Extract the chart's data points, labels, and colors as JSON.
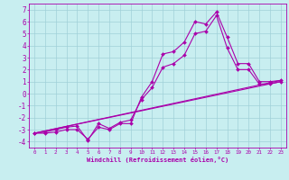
{
  "xlabel": "Windchill (Refroidissement éolien,°C)",
  "xlim": [
    -0.5,
    23.5
  ],
  "ylim": [
    -4.5,
    7.5
  ],
  "xticks": [
    0,
    1,
    2,
    3,
    4,
    5,
    6,
    7,
    8,
    9,
    10,
    11,
    12,
    13,
    14,
    15,
    16,
    17,
    18,
    19,
    20,
    21,
    22,
    23
  ],
  "yticks": [
    -4,
    -3,
    -2,
    -1,
    0,
    1,
    2,
    3,
    4,
    5,
    6,
    7
  ],
  "bg_color": "#c8eef0",
  "line_color": "#aa00aa",
  "grid_color": "#a0d0d8",
  "line1_x": [
    0,
    1,
    2,
    3,
    4,
    5,
    6,
    7,
    8,
    9,
    10,
    11,
    12,
    13,
    14,
    15,
    16,
    17,
    18,
    19,
    20,
    21,
    22,
    23
  ],
  "line1_y": [
    -3.3,
    -3.3,
    -3.2,
    -3.0,
    -3.0,
    -3.8,
    -2.8,
    -3.0,
    -2.5,
    -2.5,
    -0.3,
    1.0,
    3.3,
    3.5,
    4.3,
    6.0,
    5.8,
    6.8,
    4.7,
    2.5,
    2.5,
    1.0,
    1.0,
    1.1
  ],
  "line2_x": [
    0,
    1,
    2,
    3,
    4,
    5,
    6,
    7,
    8,
    9,
    10,
    11,
    12,
    13,
    14,
    15,
    16,
    17,
    18,
    19,
    20,
    21,
    22,
    23
  ],
  "line2_y": [
    -3.3,
    -3.2,
    -3.0,
    -2.8,
    -2.7,
    -3.9,
    -2.5,
    -2.9,
    -2.4,
    -2.2,
    -0.5,
    0.5,
    2.2,
    2.5,
    3.2,
    5.0,
    5.2,
    6.5,
    3.8,
    2.0,
    2.0,
    0.8,
    0.8,
    1.0
  ],
  "line3_x": [
    0,
    23
  ],
  "line3_y": [
    -3.3,
    1.1
  ],
  "line4_x": [
    0,
    23
  ],
  "line4_y": [
    -3.3,
    1.0
  ],
  "xlabel_fontsize": 5.0,
  "tick_fontsize_x": 4.2,
  "tick_fontsize_y": 5.5
}
